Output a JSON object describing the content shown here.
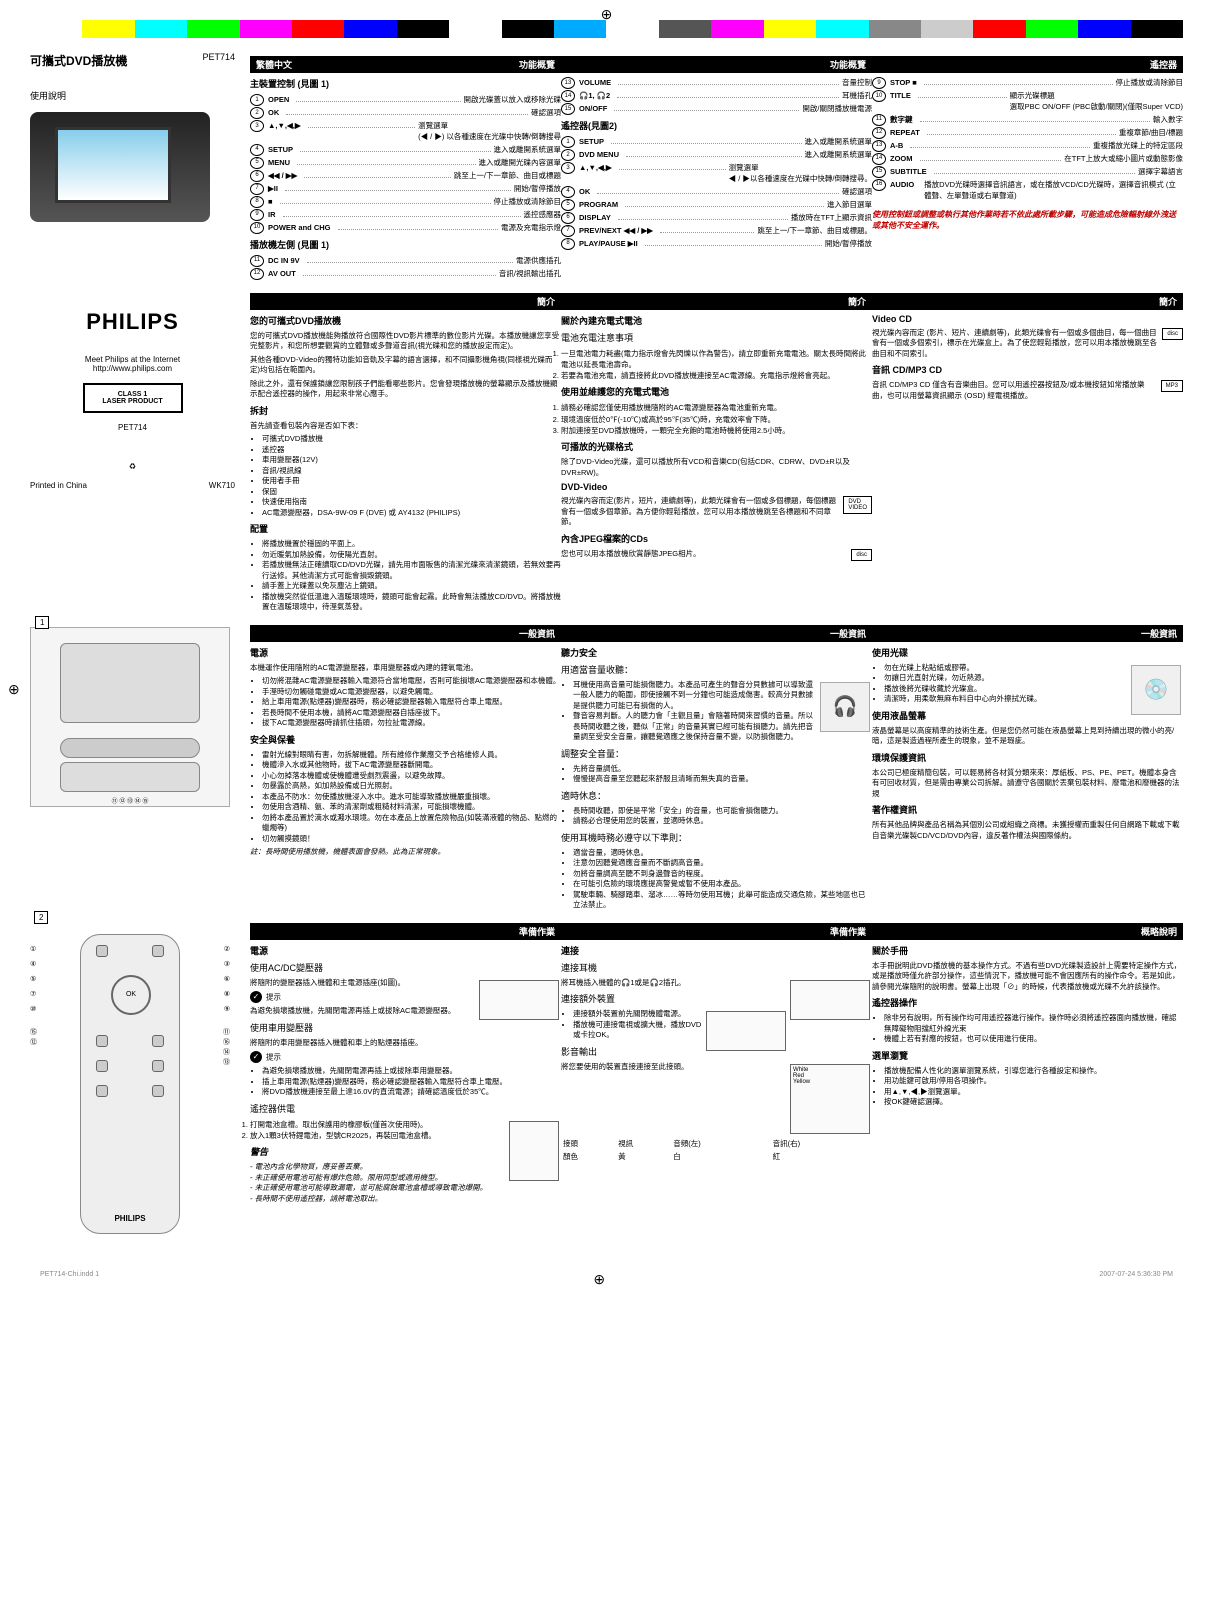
{
  "colorbar": [
    "#ffffff",
    "#ffff00",
    "#00ffff",
    "#00ff00",
    "#ff00ff",
    "#ff0000",
    "#0000ff",
    "#000000",
    "#ffffff",
    "#000000",
    "#00aaff",
    "#ffffff",
    "#555555",
    "#ff00ff",
    "#ffff00",
    "#00ffff",
    "#888888",
    "#cccccc",
    "#ff0000",
    "#00ff00",
    "#0000ff",
    "#000000"
  ],
  "product": {
    "title": "可攜式DVD播放機",
    "model": "PET714",
    "usage": "使用說明",
    "meet": "Meet Philips at the Internet",
    "url": "http://www.philips.com",
    "brand": "PHILIPS",
    "laser1": "CLASS 1",
    "laser2": "LASER PRODUCT",
    "model2": "PET714",
    "printed": "Printed in China",
    "wk": "WK710"
  },
  "lang_header": "繁體中文",
  "sections": {
    "func_overview": "功能概覽",
    "main_controls": "主裝置控制 (見圖 1)",
    "left_side": "播放機左側 (見圖 1)",
    "remote_fig2": "遙控器(見圖2)",
    "remote": "遙控器",
    "intro": "簡介",
    "your_dvd": "您的可攜式DVD播放機",
    "unpack": "拆封",
    "placement": "配置",
    "general_info": "一般資訊",
    "power": "電源",
    "safety": "安全與保養",
    "prep": "準備作業",
    "use_acdc": "使用AC/DC變壓器",
    "use_car": "使用車用變壓器",
    "remote_power": "遙控器供電",
    "warning": "警告",
    "about_battery": "關於內建充電式電池",
    "battery_notice": "電池充電注意事項",
    "battery_maintain": "使用並維護您的充電式電池",
    "playable": "可播放的光碟格式",
    "dvd_video": "DVD-Video",
    "jpeg_cds": "內含JPEG檔案的CDs",
    "hearing": "聽力安全",
    "moderate": "用適當音量收聽：",
    "safe_vol": "調整安全音量：",
    "rest": "適時休息：",
    "headphone_rules": "使用耳機時務必遵守以下準則：",
    "connect": "連接",
    "conn_headphone": "連接耳機",
    "conn_extra": "連接額外裝置",
    "video_out": "影音輸出",
    "video_cd": "Video CD",
    "audio_cd": "音訊 CD/MP3 CD",
    "use_disc": "使用光碟",
    "use_lcd": "使用液晶螢幕",
    "env_info": "環境保護資訊",
    "copyright": "著作權資訊",
    "about_manual": "關於手冊",
    "remote_op": "遙控器操作",
    "menu_nav": "選單瀏覽",
    "overview_desc": "概略說明"
  },
  "main_ctrl": [
    {
      "n": "1",
      "label": "OPEN",
      "desc": "開啟光碟蓋以放入或移除光碟"
    },
    {
      "n": "2",
      "label": "OK",
      "desc": "確認選項"
    },
    {
      "n": "3",
      "label": "▲,▼,◀,▶",
      "desc": "瀏覽選單\n(◀ / ▶) 以各種速度在光碟中快轉/倒轉搜尋"
    },
    {
      "n": "4",
      "label": "SETUP",
      "desc": "進入或離開系統選單"
    },
    {
      "n": "5",
      "label": "MENU",
      "desc": "進入或離開光碟內容選單"
    },
    {
      "n": "6",
      "label": "◀◀ / ▶▶",
      "desc": "跳至上一/下一章節、曲目或標題"
    },
    {
      "n": "7",
      "label": "▶II",
      "desc": "開始/暫停播放"
    },
    {
      "n": "8",
      "label": "■",
      "desc": "停止播放或清除節目"
    },
    {
      "n": "9",
      "label": "IR",
      "desc": "遙控感應器"
    },
    {
      "n": "10",
      "label": "POWER and CHG",
      "desc": "電源及充電指示燈"
    }
  ],
  "left_ctrl": [
    {
      "n": "11",
      "label": "DC IN 9V",
      "desc": "電源供應插孔"
    },
    {
      "n": "12",
      "label": "AV OUT",
      "desc": "音訊/視訊輸出插孔"
    }
  ],
  "left_ctrl2": [
    {
      "n": "13",
      "label": "VOLUME",
      "desc": "音量控制"
    },
    {
      "n": "14",
      "label": "🎧1, 🎧2",
      "desc": "耳機插孔"
    },
    {
      "n": "15",
      "label": "ON/OFF",
      "desc": "開啟/關閉播放機電源"
    }
  ],
  "remote_ctrl": [
    {
      "n": "1",
      "label": "SETUP",
      "desc": "進入或離開系統選單"
    },
    {
      "n": "2",
      "label": "DVD MENU",
      "desc": "進入或離開系統選單"
    },
    {
      "n": "3",
      "label": "▲,▼,◀,▶",
      "desc": "瀏覽選單\n◀ / ▶以各種速度在光碟中快轉/倒轉搜尋。"
    },
    {
      "n": "4",
      "label": "OK",
      "desc": "確認選項"
    },
    {
      "n": "5",
      "label": "PROGRAM",
      "desc": "進入節目選單"
    },
    {
      "n": "6",
      "label": "DISPLAY",
      "desc": "播放時在TFT上顯示資訊"
    },
    {
      "n": "7",
      "label": "PREV/NEXT ◀◀ / ▶▶",
      "desc": "跳至上一/下一章節、曲目或標題。"
    },
    {
      "n": "8",
      "label": "PLAY/PAUSE ▶II",
      "desc": "開始/暫停播放"
    }
  ],
  "remote_ctrl2": [
    {
      "n": "9",
      "label": "STOP ■",
      "desc": "停止播放或清除節目"
    },
    {
      "n": "10",
      "label": "TITLE",
      "desc": "顯示光碟標題\n選取PBC ON/OFF (PBC啟動/關閉)(僅限Super VCD)"
    },
    {
      "n": "11",
      "label": "數字鍵",
      "desc": "輸入數字"
    },
    {
      "n": "12",
      "label": "REPEAT",
      "desc": "重複章節/曲目/標題"
    },
    {
      "n": "13",
      "label": "A-B",
      "desc": "重複播放光碟上的特定區段"
    },
    {
      "n": "14",
      "label": "ZOOM",
      "desc": "在TFT上放大或縮小圖片或動態影像"
    },
    {
      "n": "15",
      "label": "SUBTITLE",
      "desc": "選擇字幕語言"
    },
    {
      "n": "16",
      "label": "AUDIO",
      "desc": "播放DVD光碟時選擇音訊語言，或在播放VCD/CD光碟時，選擇音訊模式 (立體聲、左單聲道或右單聲道)"
    }
  ],
  "warning_text": "使用控制鈕或調整或執行其他作業時若不依此處所載步驟，可能造成危險輻射線外洩送或其他不安全運作。",
  "intro_text": {
    "p1": "您的可攜式DVD播放機能夠播放符合國際性DVD影片標準的數位影片光碟。本播放機讓您享受完整影片，和您所想要觀賞的立體聲或多聲道音訊(視光碟和您的播放設定而定)。",
    "p2": "其他各種DVD-Video的獨特功能如音軌及字幕的語言選擇，和不同攝影機角視(同樣視光碟而定)均包括在範圍內。",
    "p3": "除此之外，還有保護鎖讓您限制孩子們能看哪些影片。您會發現播放機的螢幕顯示及播放機顯示配合遙控器的操作，用起來非常心應手。"
  },
  "unpack_text": "首先請查看包裝內容是否如下表：",
  "unpack_items": [
    "可攜式DVD播放機",
    "遙控器",
    "車用變壓器(12V)",
    "音訊/視訊線",
    "使用者手冊",
    "保固",
    "快速使用指南",
    "AC電源變壓器，DSA-9W-09 F (DVE) 或 AY4132 (PHILIPS)"
  ],
  "placement_items": [
    "將播放機置於穩固的平面上。",
    "勿近暖氣加熱設備，勿使陽光直射。",
    "若播放機無法正確讀取CD/DVD光碟，請先用市面販售的清潔光碟來清潔鏡頭，若無效要再行送修。其他清潔方式可能會損毀鏡頭。",
    "請手蓋上光碟蓋以免灰塵沾上鏡頭。",
    "播放機突然從低溫進入溫暖環境時，鏡頭可能會起霧。此時會無法播放CD/DVD。將播放機置在溫暖環境中，待溼氣蒸發。"
  ],
  "power_text": {
    "p1": "本機運作使用隨附的AC電源變壓器，車用變壓器或內建的鋰氧電池。",
    "items": [
      "切勿將混雜AC電源變壓器輸入電源符合當地電壓，否則可能損壞AC電源變壓器和本機體。",
      "手溼時切勿觸碰電變或AC電源變壓器，以避免觸電。",
      "給上車用電源(點煙器)變壓器時，務必確認變壓器輸入電壓符合車上電壓。",
      "若長時間不使用本機，請將AC電源變壓器自插座拔下。",
      "拔下AC電源變壓器時請抓住插頭，勿拉扯電源線。"
    ]
  },
  "safety_items": [
    "雷射光線對眼睛有害，勿拆解機體。所有維修作業應交予合格維修人員。",
    "機體滲入水或其他物時，拔下AC電源變壓器斷開電。",
    "小心勿掉落本機體或使機體遭受劇烈震盪，以避免故障。",
    "勿暴露於高熱，如加熱設備或日光照射。",
    "本產品不防水：勿使播放機浸入水中。進水可能導致播放機嚴重損壞。",
    "勿使用含酒精、氨、苯的清潔劑或粗糙材料清潔，可能損壞機體。",
    "勿將本產品置於滴水或濺水環境。勿在本產品上放置危險物品(如裝滿液體的物品、點燃的蠟燭等)",
    "切勿觸摸鏡頭！"
  ],
  "safety_note": "註：長時間使用播放機，機體表面會發熱。此為正常現象。",
  "prep": {
    "acdc": "將隨附的變壓器插入機體和主電源插座(如圖)。",
    "tip1": "提示",
    "tip1_text": "為避免損壞播放機，先關閉電源再插上或拔除AC電源變壓器。",
    "car": "將隨附的車用變壓器插入機體和車上的點煙器插座。",
    "tip2": "提示",
    "tip2_items": [
      "為避免損壞播放機，先關閉電源再插上或拔除車用變壓器。",
      "插上車用電源(點煙器)變壓器時，務必確認變壓器輸入電壓符合車上電壓。",
      "將DVD播放機連接至最上達16.0V的直流電源；請確認溫度低於35℃。"
    ],
    "remote_steps": [
      "打開電池盒槽。取出保護用的橡膠板(僅首次使用時)。",
      "放入1顆3伏特鋰電池，型號CR2025，再裝回電池盒槽。"
    ],
    "warn_items": [
      "電池內含化學物質，應妥善丟棄。",
      "未正確使用電池可能有爆炸危險。限用同型或適用機型。",
      "未正確使用電池可能導致漏電，並可能腐蝕電池盒槽或導致電池爆開。",
      "長時間不使用遙控器，請將電池取出。"
    ]
  },
  "battery": {
    "notice": [
      "一旦電池電力耗盡(電力指示燈會先閃爍以作為警告)，請立即重新充電電池。關太長時間將此電池以延長電池壽命。",
      "若要為電池充電，請直接將此DVD播放機連接至AC電源線。充電指示燈將會亮起。"
    ],
    "maintain": [
      "請務必確認您僅使用播放機隨附的AC電源變壓器為電池重新充電。",
      "環境溫度低於0℉(-10℃)或高於95℉(35℃)時，充電效率會下降。",
      "附加連接至DVD播放機時，一顆完全充飽的電池時機將使用2.5小時。"
    ]
  },
  "playable_text": "除了DVD-Video光碟，還可以播放所有VCD和音樂CD(包括CDR、CDRW、DVD±R以及DVR±RW)。",
  "dvd_text": "視光碟內容而定(影片，短片，連續劇等)，此類光碟會有一個或多個標題，每個標題會有一個或多個章節。為方便你輕鬆播放，您可以用本播放機跳至各標題和不同章節。",
  "jpeg_text": "您也可以用本播放機欣賞靜態JPEG相片。",
  "vcd_text": "視光碟內容而定 (影片、短片、連續劇等)，此類光碟會有一個或多個曲目，每一個曲目會有一個或多個索引，標示在光碟盒上。為了使您輕鬆播放，您可以用本播放機跳至各曲目和不同索引。",
  "audiocd_text": "音訊 CD/MP3 CD 僅含有音樂曲目。您可以用遙控器按鈕及/或本機按鈕如常播放樂曲，也可以用螢幕資訊顯示 (OSD) 經電視播放。",
  "hearing": {
    "moderate": [
      "耳機使用高音量可能損傷聽力。本產品可產生的聲音分貝數據可以導致還一般人聽力的範圍，即使接觸不到一分鐘也可能造成傷害。較高分貝數據是提供聽力可能已有損傷的人。",
      "聲音容易判斷。人的聽力會「主觀且量」會隨著時間來習慣的音量。所以長時間收聽之後，聽似「正常」的音量其實已經可能有損聽力。請先把音量調至受安全音量，讓聽覺適應之後保持音量不變，以防損傷聽力。"
    ],
    "safe": [
      "先將音量調低。",
      "慢慢提高音量至您聽起來舒服且清晰而無失真的音量。"
    ],
    "rest": [
      "長時間收聽，即使是平常「安全」的音量，也可能會損傷聽力。",
      "請務必合理使用您的裝置，並適時休息。"
    ],
    "rules": [
      "適當音量，適時休息。",
      "注意勿因聽覺適應音量而不斷調高音量。",
      "勿將音量調高至聽不到身邊聲音的程度。",
      "在可能引危險的環境應提高警覺或暫不使用本產品。",
      "駕駛車輛、騎腳踏車、溜冰……等時勿使用耳機；此舉可能造成交通危險，某些地區也已立法禁止。"
    ]
  },
  "connect": {
    "headphone": "將耳機插入機體的🎧1或是🎧2插孔。",
    "extra": [
      "連接額外裝置前先關閉機體電源。",
      "播放機可連接電視或擴大機，播放DVD或卡拉OK。"
    ],
    "video_out": "將您要使用的裝置直接連接至此接頭。",
    "conn_table": {
      "h1": "接頭",
      "h2": "視訊",
      "h3": "音頻(左)",
      "h4": "音訊(右)",
      "r1": "顏色",
      "r2": "黃",
      "r3": "白",
      "r4": "紅"
    }
  },
  "disc_use": [
    "勿在光碟上粘貼紙或膠帶。",
    "勿讓日光直射光碟，勿近熱源。",
    "播放後將光碟收藏於光碟盒。",
    "清潔時，用柔軟無麻布料自中心向外擦拭光碟。"
  ],
  "lcd_text": "液晶螢幕是以高度精準的技術生產。但是您仍然可能在液晶螢幕上見到持續出現的微小的亮/暗，這是製造過程所產生的現象，並不是瑕疵。",
  "env_text": "本公司已極度精簡包裝，可以輕易將各材質分類來來：厚紙板、PS、PE、PET。機體本身含有可回收材質，但是需由專業公司拆解。請遵守各國關於丟棄包裝材料、廢電池和廢機器的法規",
  "copyright_text": "所有其他品牌與產品名稱為其個別公司或組織之商標。未獲授權而重製任何自網路下載或下載自音樂光碟製CD/VCD/DVD內容，違反著作權法與國際條約。",
  "manual_text": "本手冊說明此DVD播放機的基本操作方式。不過有些DVD光碟製造設計上需要特定操作方式，或是播放時僅允許部分操作，這些情況下，播放機可能不會因應所有的操作命令。若是如此，請參閱光碟隨附的說明書。螢幕上出現「⊘」的時候，代表播放機或光碟不允許該操作。",
  "remote_op": [
    "除非另有說明，所有操作均可用遙控器進行操作。操作時必須將遙控器面向播放機，確認無障礙物阻擋紅外線光束",
    "機體上若有對應的按鈕，也可以使用進行使用。"
  ],
  "menu_nav": [
    "播放機配備人性化的選單瀏覽系統，引導您進行各種設定和操作。",
    "用功能鍵可啟用/停用各項操作。",
    "用▲,▼,◀,▶瀏覽選單。",
    "按OK鍵確認選擇。"
  ],
  "footer": {
    "file": "PET714-Chi.indd   1",
    "date": "2007-07-24   5:36:30 PM"
  }
}
